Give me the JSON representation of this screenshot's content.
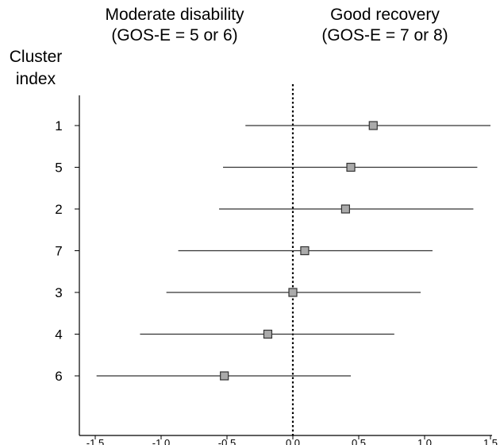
{
  "header": {
    "left_line1": "Moderate disability",
    "left_line2": "(GOS-E = 5 or 6)",
    "right_line1": "Good recovery",
    "right_line2": "(GOS-E = 7 or 8)"
  },
  "chart_data": {
    "type": "forest",
    "ylabel_line1": "Cluster",
    "ylabel_line2": "index",
    "xlim": [
      -1.5,
      1.5
    ],
    "xticks": [
      "-1.5",
      "-1.0",
      "-0.5",
      "0.0",
      "0.5",
      "1.0",
      "1.5"
    ],
    "xtick_values": [
      -1.5,
      -1.0,
      -0.5,
      0.0,
      0.5,
      1.0,
      1.5
    ],
    "reference_line": 0.0,
    "categories": [
      "1",
      "5",
      "2",
      "7",
      "3",
      "4",
      "6"
    ],
    "estimates": [
      0.61,
      0.44,
      0.4,
      0.09,
      0.0,
      -0.19,
      -0.52
    ],
    "lower": [
      -0.36,
      -0.53,
      -0.56,
      -0.87,
      -0.96,
      -1.16,
      -1.49
    ],
    "upper": [
      1.5,
      1.4,
      1.37,
      1.06,
      0.97,
      0.77,
      0.44
    ],
    "colors": {
      "marker_fill": "#aaaaaa",
      "marker_stroke": "#333333",
      "line": "#333333"
    }
  }
}
